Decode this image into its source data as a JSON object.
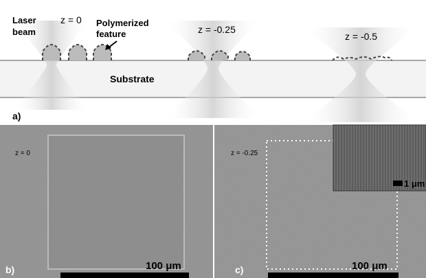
{
  "panel_a": {
    "label": "a)",
    "laser_beam_label": [
      "Laser",
      "beam"
    ],
    "z_labels": [
      "z = 0",
      "z = -0.25",
      "z = -0.5"
    ],
    "polymerized_feature_label": [
      "Polymerized",
      "feature"
    ],
    "substrate_label": "Substrate"
  },
  "panel_b": {
    "label": "b)",
    "z_label": "z = 0",
    "scale_bar": "100 μm"
  },
  "panel_c": {
    "label": "c)",
    "z_label": "z = -0.25",
    "scale_bar": "100 μm",
    "inset_scale_bar": "1 μm"
  }
}
